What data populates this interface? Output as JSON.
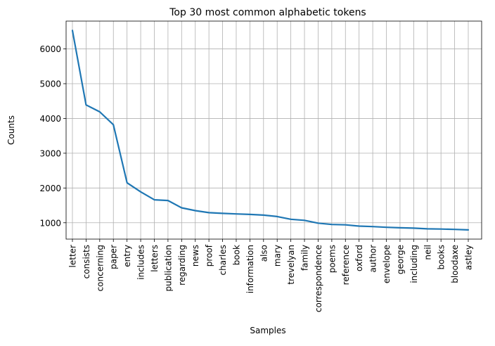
{
  "chart_data": {
    "type": "line",
    "title": "Top 30 most common alphabetic tokens",
    "xlabel": "Samples",
    "ylabel": "Counts",
    "grid": true,
    "line_color": "#1f77b4",
    "ylim": [
      530,
      6800
    ],
    "yticks": [
      "1000",
      "2000",
      "3000",
      "4000",
      "5000",
      "6000"
    ],
    "categories": [
      "letter",
      "consists",
      "concerning",
      "paper",
      "entry",
      "includes",
      "letters",
      "publication",
      "regarding",
      "news",
      "proof",
      "charles",
      "book",
      "information",
      "also",
      "mary",
      "trevelyan",
      "family",
      "correspondence",
      "poems",
      "reference",
      "oxford",
      "author",
      "envelope",
      "george",
      "including",
      "neil",
      "books",
      "bloodaxe",
      "astley"
    ],
    "series": [
      {
        "values": [
          6530,
          4390,
          4190,
          3820,
          2150,
          1890,
          1660,
          1640,
          1430,
          1350,
          1290,
          1270,
          1255,
          1240,
          1220,
          1180,
          1100,
          1070,
          990,
          950,
          940,
          905,
          890,
          870,
          855,
          845,
          825,
          820,
          810,
          795
        ]
      }
    ]
  }
}
